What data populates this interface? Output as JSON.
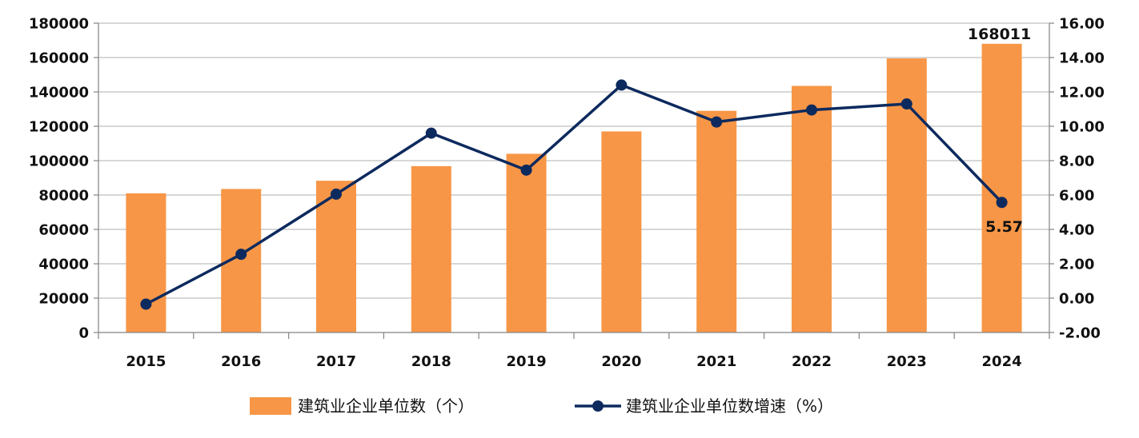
{
  "chart_data": {
    "type": "bar",
    "categories": [
      "2015",
      "2016",
      "2017",
      "2018",
      "2019",
      "2020",
      "2021",
      "2022",
      "2023",
      "2024"
    ],
    "series": [
      {
        "name": "建筑业企业单位数（个）",
        "type": "bar",
        "axis": "left",
        "color": "#F79646",
        "values": [
          81000,
          83500,
          88300,
          96800,
          104000,
          117000,
          129000,
          143500,
          159500,
          168011
        ]
      },
      {
        "name": "建筑业企业单位数增速（%）",
        "type": "line",
        "axis": "right",
        "color": "#0D2A5E",
        "values": [
          -0.35,
          2.55,
          6.05,
          9.6,
          7.45,
          12.4,
          10.25,
          10.95,
          11.3,
          5.57
        ]
      }
    ],
    "y_left": {
      "ylim": [
        0,
        180000
      ],
      "ticks": [
        "0",
        "20000",
        "40000",
        "60000",
        "80000",
        "100000",
        "120000",
        "140000",
        "160000",
        "180000"
      ]
    },
    "y_right": {
      "ylim": [
        -2,
        16
      ],
      "ticks": [
        "-2.00",
        "0.00",
        "2.00",
        "4.00",
        "6.00",
        "8.00",
        "10.00",
        "12.00",
        "14.00",
        "16.00"
      ]
    },
    "data_labels": [
      {
        "series": 0,
        "category": "2024",
        "text": "168011"
      },
      {
        "series": 1,
        "category": "2024",
        "text": "5.57"
      }
    ],
    "grid": true,
    "legend_position": "bottom"
  }
}
